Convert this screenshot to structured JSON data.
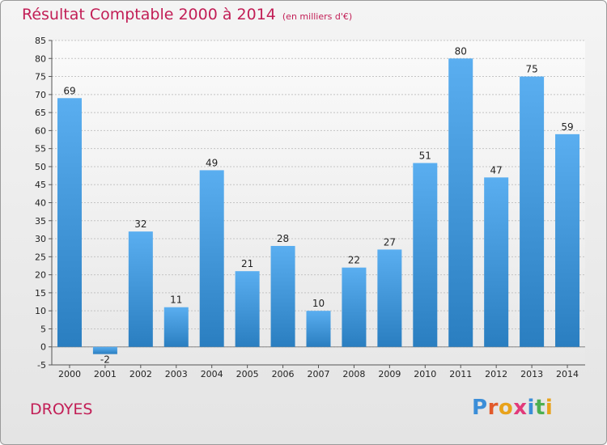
{
  "title": "Résultat Comptable 2000 à 2014",
  "unit_note": "(en milliers d'€)",
  "commune": "DROYES",
  "logo": {
    "text": "Proxiti",
    "colors": [
      "#3b8ed8",
      "#e25a2b",
      "#e8a21b",
      "#e23a7a",
      "#3b8ed8",
      "#4caf50",
      "#e8a21b"
    ]
  },
  "colors": {
    "title": "#c21e56",
    "bar_light": "#5aaef0",
    "bar_dark": "#2a7ec0"
  },
  "chart_data": {
    "type": "bar",
    "title": "Résultat Comptable 2000 à 2014",
    "subtitle": "(en milliers d'€)",
    "categories": [
      "2000",
      "2001",
      "2002",
      "2003",
      "2004",
      "2005",
      "2006",
      "2007",
      "2008",
      "2009",
      "2010",
      "2011",
      "2012",
      "2013",
      "2014"
    ],
    "values": [
      69,
      -2,
      32,
      11,
      49,
      21,
      28,
      10,
      22,
      27,
      51,
      80,
      47,
      75,
      59
    ],
    "ylim": [
      -5,
      85
    ],
    "yticks": [
      -5,
      0,
      5,
      10,
      15,
      20,
      25,
      30,
      35,
      40,
      45,
      50,
      55,
      60,
      65,
      70,
      75,
      80,
      85
    ],
    "grid": true,
    "xlabel": "",
    "ylabel": ""
  }
}
